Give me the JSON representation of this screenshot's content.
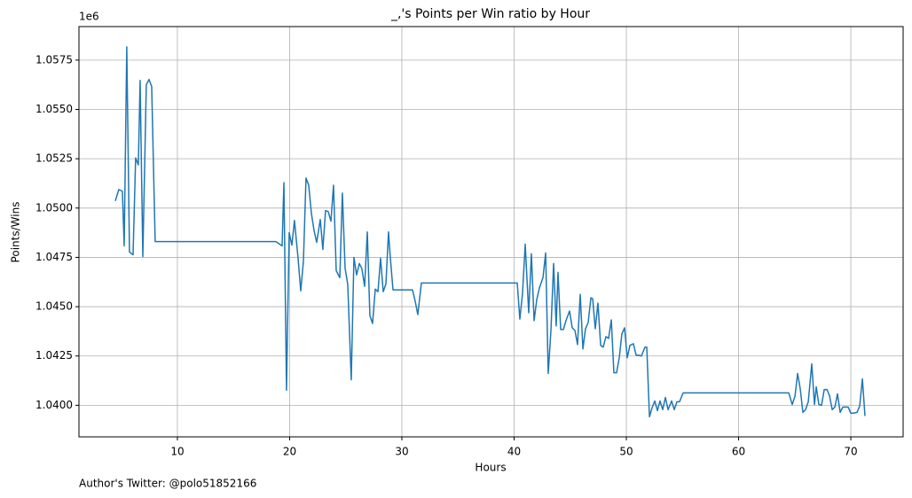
{
  "chart_data": {
    "type": "line",
    "title": "_,'s Points per Win ratio by Hour",
    "x_label": "Hours",
    "y_label": "Points/Wins",
    "y_offset_label": "1e6",
    "footer": "Author's Twitter: @polo51852166",
    "color": "#1f77b4",
    "grid": true,
    "xlim": [
      1.23,
      74.66
    ],
    "ylim": [
      1038400,
      1059200
    ],
    "xticks": [
      10,
      20,
      30,
      40,
      50,
      60,
      70
    ],
    "yticks": [
      {
        "value": 1040000,
        "label": "1.0400"
      },
      {
        "value": 1042500,
        "label": "1.0425"
      },
      {
        "value": 1045000,
        "label": "1.0450"
      },
      {
        "value": 1047500,
        "label": "1.0475"
      },
      {
        "value": 1050000,
        "label": "1.0500"
      },
      {
        "value": 1052500,
        "label": "1.0525"
      },
      {
        "value": 1055000,
        "label": "1.0550"
      },
      {
        "value": 1057500,
        "label": "1.0575"
      }
    ],
    "x": [
      4.47,
      4.78,
      5.1,
      5.26,
      5.49,
      5.73,
      6.05,
      6.28,
      6.52,
      6.68,
      6.92,
      7.23,
      7.47,
      7.71,
      8.02,
      18.77,
      19.33,
      19.49,
      19.72,
      19.96,
      20.2,
      20.43,
      20.75,
      20.99,
      21.23,
      21.46,
      21.7,
      21.94,
      22.17,
      22.41,
      22.73,
      22.96,
      23.2,
      23.44,
      23.68,
      23.91,
      24.15,
      24.47,
      24.7,
      24.94,
      25.18,
      25.49,
      25.73,
      25.97,
      26.21,
      26.44,
      26.68,
      26.92,
      27.15,
      27.39,
      27.63,
      27.87,
      28.1,
      28.34,
      28.58,
      28.81,
      28.97,
      29.21,
      30.95,
      31.19,
      31.42,
      31.74,
      40.28,
      40.51,
      40.75,
      40.99,
      41.3,
      41.54,
      41.78,
      42.02,
      42.25,
      42.57,
      42.81,
      43.04,
      43.28,
      43.52,
      43.75,
      43.91,
      44.15,
      44.39,
      44.62,
      44.94,
      45.18,
      45.42,
      45.65,
      45.89,
      46.13,
      46.36,
      46.6,
      46.84,
      47.0,
      47.23,
      47.47,
      47.71,
      47.94,
      48.18,
      48.42,
      48.66,
      48.89,
      49.13,
      49.37,
      49.6,
      49.84,
      50.08,
      50.32,
      50.63,
      50.87,
      51.11,
      51.34,
      51.66,
      51.82,
      52.06,
      52.29,
      52.53,
      52.77,
      53.0,
      53.24,
      53.48,
      53.72,
      54.03,
      54.27,
      54.51,
      54.74,
      55.06,
      64.47,
      64.78,
      65.02,
      65.26,
      65.49,
      65.73,
      65.97,
      66.21,
      66.52,
      66.76,
      66.92,
      67.15,
      67.39,
      67.63,
      67.87,
      68.1,
      68.34,
      68.58,
      68.81,
      69.05,
      69.29,
      69.53,
      69.76,
      70.0,
      70.24,
      70.55,
      70.79,
      71.03,
      71.26
    ],
    "values": [
      1050360,
      1050940,
      1050850,
      1048080,
      1058170,
      1047770,
      1047630,
      1052540,
      1052190,
      1056470,
      1047540,
      1056250,
      1056520,
      1056160,
      1048300,
      1048300,
      1048080,
      1051290,
      1040760,
      1048750,
      1048120,
      1049370,
      1047460,
      1045800,
      1047320,
      1051520,
      1051160,
      1049730,
      1048880,
      1048260,
      1049420,
      1047900,
      1049870,
      1049820,
      1049330,
      1051160,
      1046830,
      1046470,
      1050760,
      1046960,
      1046120,
      1041290,
      1047500,
      1046610,
      1047190,
      1046920,
      1046030,
      1048790,
      1044550,
      1044150,
      1045890,
      1045760,
      1047460,
      1045760,
      1046160,
      1048790,
      1047500,
      1045850,
      1045850,
      1045270,
      1044600,
      1046200,
      1046200,
      1044370,
      1045670,
      1048170,
      1044690,
      1047680,
      1044290,
      1045360,
      1045940,
      1046470,
      1047720,
      1041610,
      1043790,
      1047190,
      1044020,
      1046740,
      1043840,
      1043840,
      1044290,
      1044780,
      1043930,
      1043790,
      1043080,
      1045620,
      1042860,
      1043880,
      1044200,
      1045450,
      1045400,
      1043880,
      1045180,
      1043040,
      1042950,
      1043480,
      1043390,
      1044330,
      1041650,
      1041650,
      1042410,
      1043620,
      1043930,
      1042410,
      1043040,
      1043120,
      1042540,
      1042540,
      1042500,
      1042950,
      1042950,
      1039420,
      1039870,
      1040220,
      1039730,
      1040220,
      1039780,
      1040400,
      1039780,
      1040220,
      1039780,
      1040180,
      1040180,
      1040630,
      1040630,
      1040040,
      1040450,
      1041610,
      1040850,
      1039640,
      1039780,
      1040180,
      1042100,
      1040040,
      1040940,
      1040040,
      1040000,
      1040800,
      1040800,
      1040490,
      1039780,
      1039910,
      1040580,
      1039640,
      1039910,
      1039910,
      1039910,
      1039600,
      1039600,
      1039640,
      1039960,
      1041340,
      1039460
    ]
  }
}
